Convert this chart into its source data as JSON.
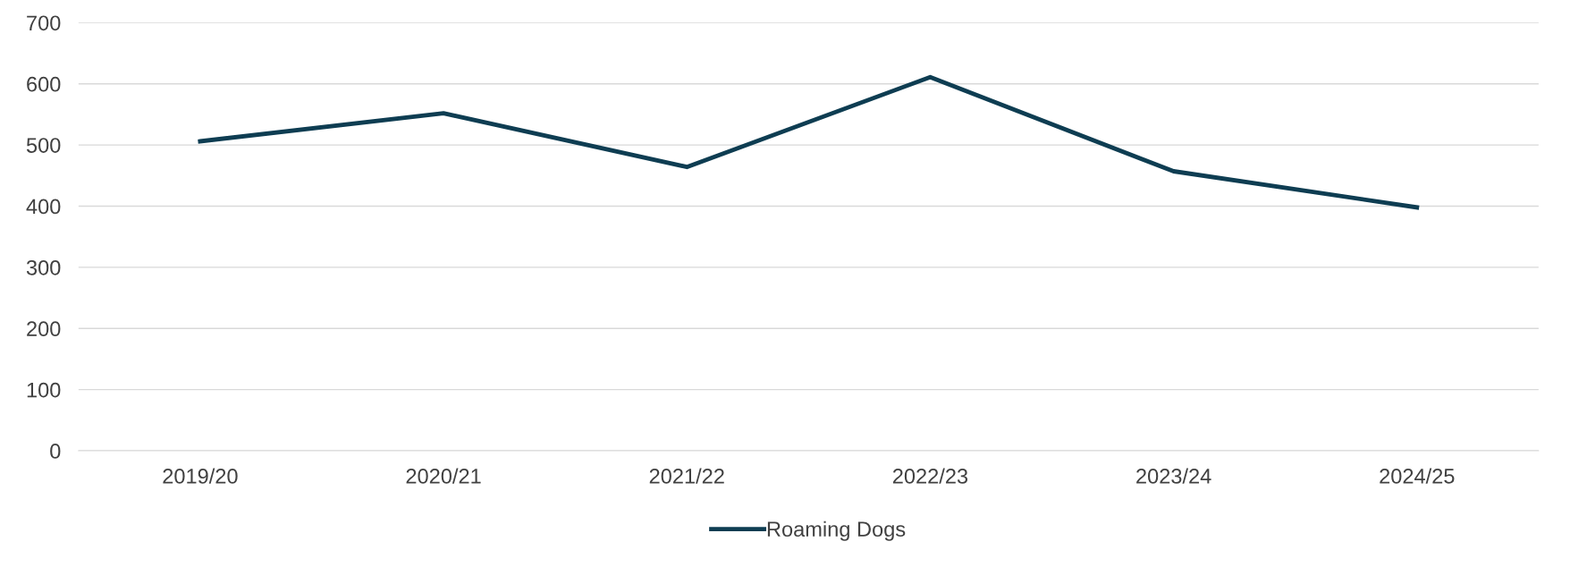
{
  "chart_data": {
    "type": "line",
    "categories": [
      "2019/20",
      "2020/21",
      "2021/22",
      "2022/23",
      "2023/24",
      "2024/25"
    ],
    "series": [
      {
        "name": "Roaming Dogs",
        "color": "#0e3d52",
        "values": [
          506,
          552,
          464,
          611,
          457,
          398
        ]
      }
    ],
    "ylim": [
      0,
      700
    ],
    "yticks": [
      0,
      100,
      200,
      300,
      400,
      500,
      600,
      700
    ],
    "grid": "y",
    "legend": "bottom",
    "marker": "none",
    "line_style": "solid"
  }
}
